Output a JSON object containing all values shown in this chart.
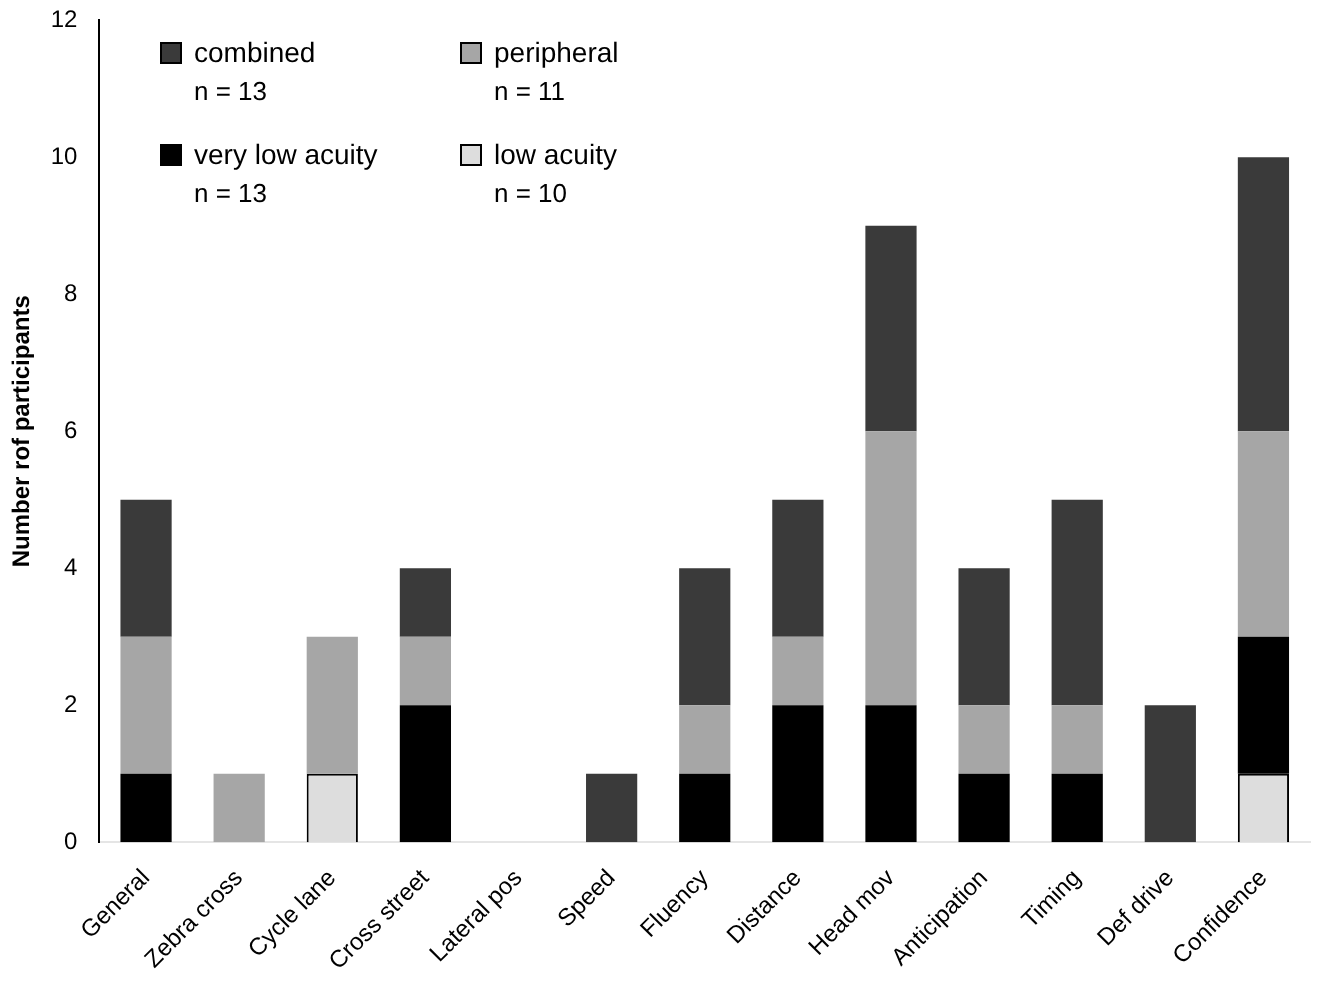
{
  "chart_data": {
    "type": "bar",
    "stacked": true,
    "ylabel": "Number rof participants",
    "categories": [
      "General",
      "Zebra cross",
      "Cycle lane",
      "Cross street",
      "Lateral pos",
      "Speed",
      "Fluency",
      "Distance",
      "Head mov",
      "Anticipation",
      "Timing",
      "Def drive",
      "Confidence"
    ],
    "series": [
      {
        "name": "low acuity",
        "color": "#dddddd",
        "values": [
          0,
          0,
          1,
          0,
          0,
          0,
          0,
          0,
          0,
          0,
          0,
          0,
          1
        ]
      },
      {
        "name": "very low acuity",
        "color": "#000000",
        "values": [
          1,
          0,
          0,
          2,
          0,
          0,
          1,
          2,
          2,
          1,
          1,
          0,
          2
        ]
      },
      {
        "name": "peripheral",
        "color": "#a6a6a6",
        "values": [
          2,
          1,
          2,
          1,
          0,
          0,
          1,
          1,
          4,
          1,
          1,
          0,
          3
        ]
      },
      {
        "name": "combined",
        "color": "#3a3a3a",
        "values": [
          2,
          0,
          0,
          1,
          0,
          1,
          2,
          2,
          3,
          2,
          3,
          2,
          4
        ]
      }
    ],
    "annotations": [
      "n = 10",
      "n = 13",
      "n = 11",
      "n = 13"
    ],
    "ylim": [
      0,
      12
    ],
    "yticks": [
      0,
      2,
      4,
      6,
      8,
      10,
      12
    ],
    "grid": false,
    "legend": "top left"
  }
}
